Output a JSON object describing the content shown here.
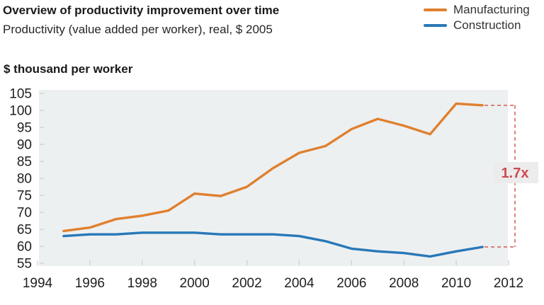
{
  "header": {
    "title": "Overview of productivity improvement over time",
    "subtitle": "Productivity (value added per worker), real, $ 2005"
  },
  "axis": {
    "y_title": "$ thousand per worker"
  },
  "legend": {
    "items": [
      {
        "label": "Manufacturing",
        "color": "#e0802f"
      },
      {
        "label": "Construction",
        "color": "#2878b8"
      }
    ]
  },
  "chart_data": {
    "type": "line",
    "title": "Overview of productivity improvement over time",
    "subtitle": "Productivity (value added per worker), real, $ 2005",
    "ylabel": "$ thousand per worker",
    "xlabel": "",
    "xlim": [
      1994,
      2012
    ],
    "ylim": [
      55,
      105
    ],
    "xticks": [
      1994,
      1996,
      1998,
      2000,
      2002,
      2004,
      2006,
      2008,
      2010,
      2012
    ],
    "yticks": [
      55,
      60,
      65,
      70,
      75,
      80,
      85,
      90,
      95,
      100,
      105
    ],
    "grid": false,
    "legend_position": "top-right",
    "plot_bg": "#edf0f1",
    "x": [
      1995,
      1996,
      1997,
      1998,
      1999,
      2000,
      2001,
      2002,
      2003,
      2004,
      2005,
      2006,
      2007,
      2008,
      2009,
      2010,
      2011
    ],
    "series": [
      {
        "name": "Manufacturing",
        "color": "#e0802f",
        "values": [
          64.5,
          65.5,
          68,
          69,
          70.5,
          75.5,
          74.8,
          77.5,
          83,
          87.5,
          89.5,
          94.5,
          97.5,
          95.5,
          93,
          102,
          101.5
        ]
      },
      {
        "name": "Construction",
        "color": "#2878b8",
        "values": [
          63,
          63.5,
          63.5,
          64,
          64,
          64,
          63.5,
          63.5,
          63.5,
          63,
          61.5,
          59.3,
          58.5,
          58,
          57,
          58.5,
          59.8
        ]
      }
    ],
    "annotation": {
      "label": "1.7x",
      "text_color": "#cc4a50",
      "line_color": "#d5655f",
      "bg": "#ececec"
    }
  }
}
